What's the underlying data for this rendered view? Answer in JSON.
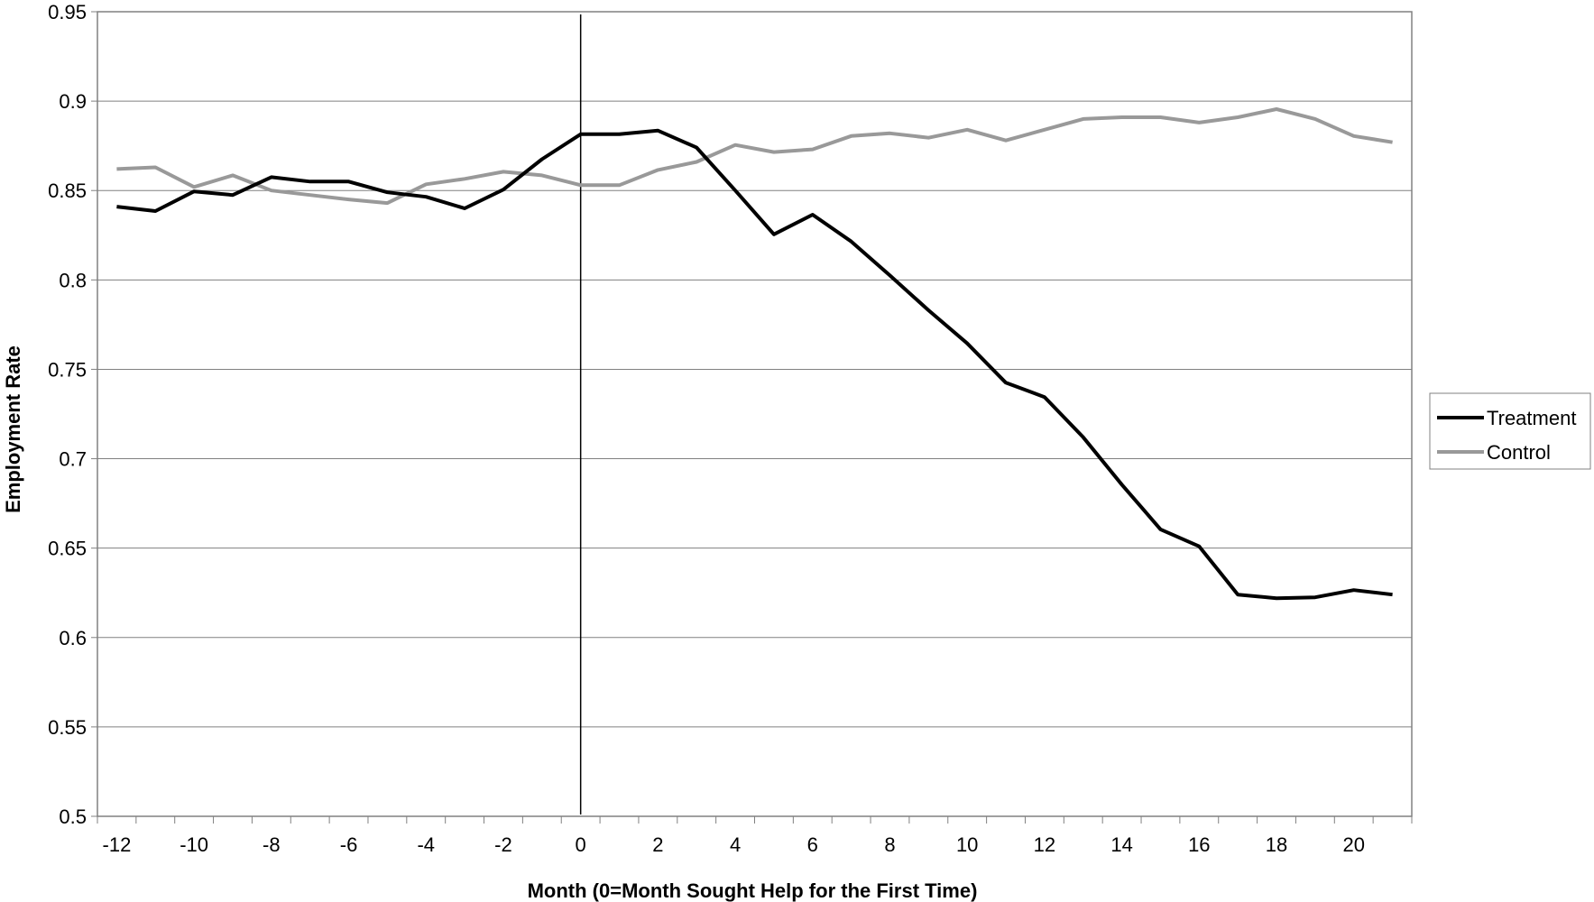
{
  "chart_data": {
    "type": "line",
    "title": "",
    "xlabel": "Month (0=Month Sought Help for the First Time)",
    "ylabel": "Employment Rate",
    "xlim": [
      -12.5,
      21.5
    ],
    "ylim": [
      0.5,
      0.95
    ],
    "x_tick_labels": [
      "-12",
      "-10",
      "-8",
      "-6",
      "-4",
      "-2",
      "0",
      "2",
      "4",
      "6",
      "8",
      "10",
      "12",
      "14",
      "16",
      "18",
      "20"
    ],
    "y_tick_labels": [
      "0.5",
      "0.55",
      "0.6",
      "0.65",
      "0.7",
      "0.75",
      "0.8",
      "0.85",
      "0.9",
      "0.95"
    ],
    "grid": "horizontal",
    "legend": "right",
    "reference_line_x": 0,
    "x": [
      -12,
      -11,
      -10,
      -9,
      -8,
      -7,
      -6,
      -5,
      -4,
      -3,
      -2,
      -1,
      0,
      1,
      2,
      3,
      4,
      5,
      6,
      7,
      8,
      9,
      10,
      11,
      12,
      13,
      14,
      15,
      16,
      17,
      18,
      19,
      20,
      21
    ],
    "series": [
      {
        "name": "Treatment",
        "color": "#000000",
        "values": [
          0.841,
          0.8385,
          0.8495,
          0.8475,
          0.8575,
          0.855,
          0.855,
          0.849,
          0.8465,
          0.84,
          0.8505,
          0.8675,
          0.8815,
          0.8815,
          0.8835,
          0.874,
          0.85,
          0.8255,
          0.8365,
          0.8215,
          0.8025,
          0.783,
          0.7645,
          0.7425,
          0.7345,
          0.712,
          0.6855,
          0.6605,
          0.651,
          0.624,
          0.622,
          0.6225,
          0.6265,
          0.624
        ]
      },
      {
        "name": "Control",
        "color": "#999999",
        "values": [
          0.862,
          0.863,
          0.852,
          0.8585,
          0.85,
          0.8475,
          0.845,
          0.843,
          0.8535,
          0.8565,
          0.8605,
          0.8585,
          0.853,
          0.853,
          0.8615,
          0.866,
          0.8755,
          0.8715,
          0.873,
          0.8805,
          0.882,
          0.8795,
          0.884,
          0.878,
          0.884,
          0.89,
          0.891,
          0.891,
          0.888,
          0.891,
          0.8955,
          0.89,
          0.8805,
          0.877
        ]
      }
    ]
  }
}
